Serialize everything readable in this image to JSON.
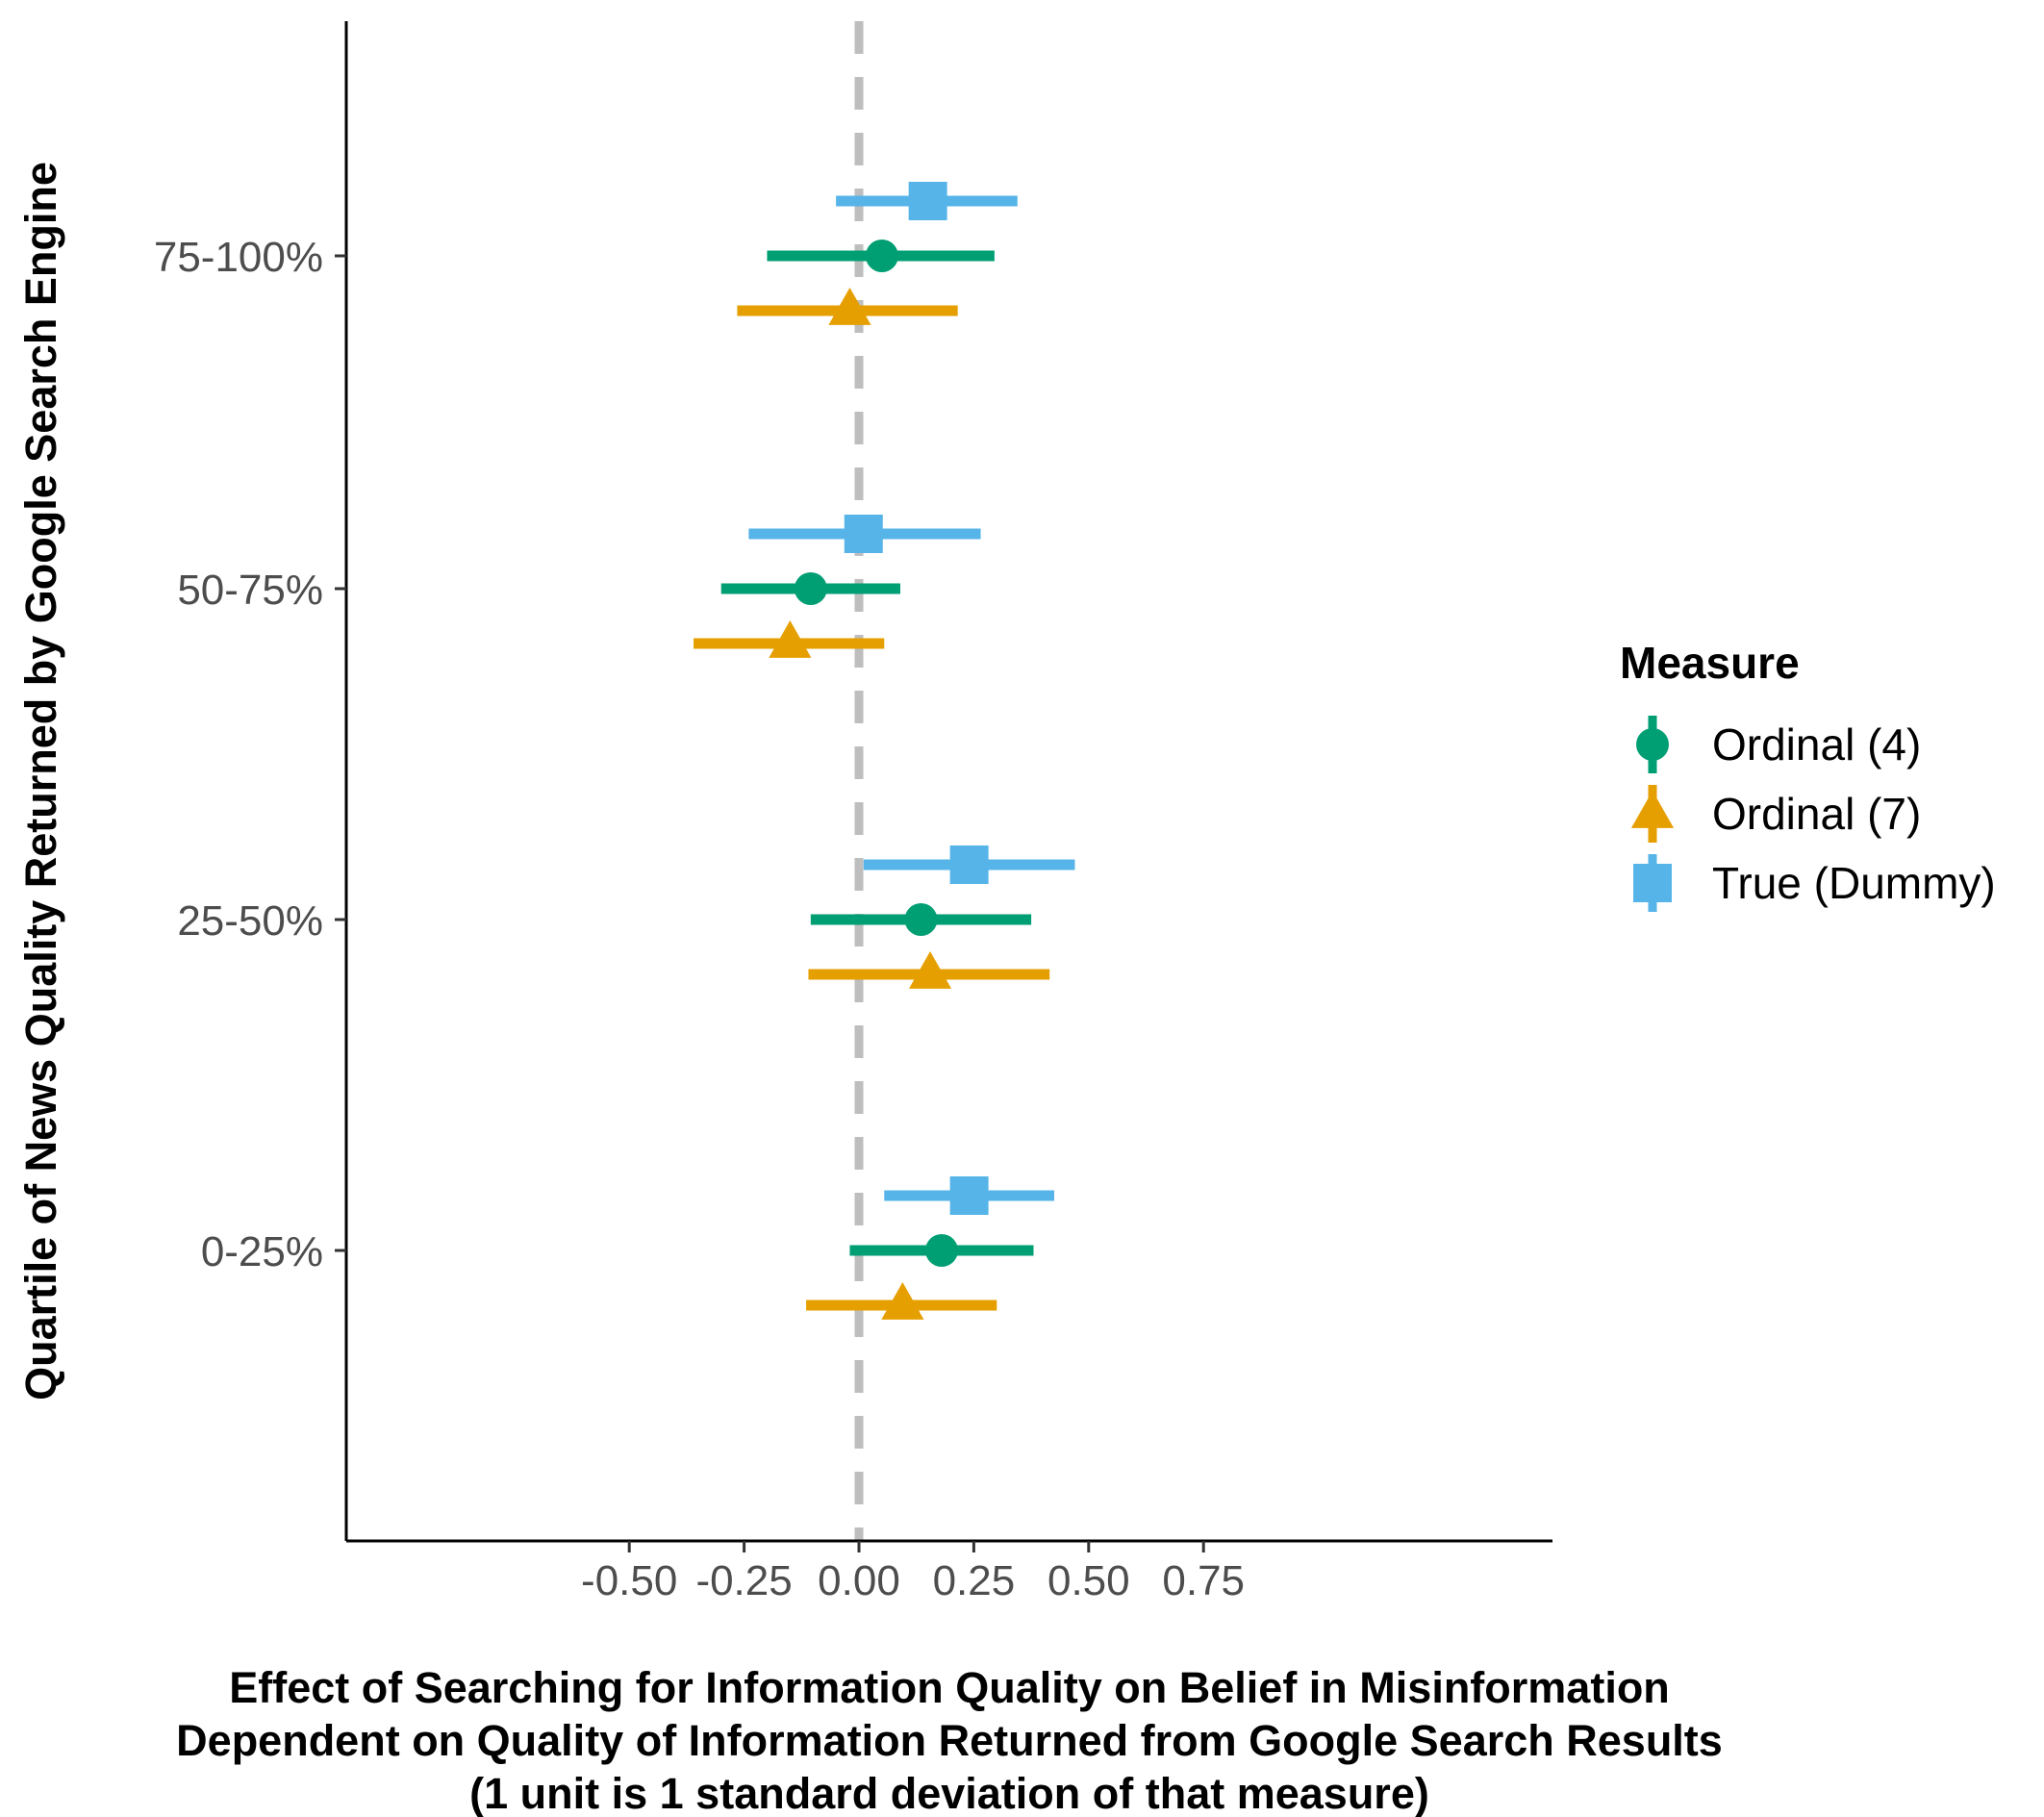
{
  "chart_data": {
    "type": "dot-whisker",
    "xlabel": [
      "Effect of Searching for Information Quality on Belief in Misinformation",
      "Dependent on Quality of Information Returned from Google Search Results",
      "(1 unit is 1 standard deviation of that measure)"
    ],
    "ylabel": "Quartile of News Quality Returned by Google Search Engine",
    "xlim": [
      -0.56,
      0.75
    ],
    "x_ticks": [
      -0.5,
      -0.25,
      0.0,
      0.25,
      0.5,
      0.75
    ],
    "x_tick_labels": [
      "-0.50",
      "-0.25",
      "0.00",
      "0.25",
      "0.50",
      "0.75"
    ],
    "categories": [
      "75-100%",
      "50-75%",
      "25-50%",
      "0-25%"
    ],
    "reference_line": {
      "x": 0,
      "style": "dashed",
      "color": "#bebebe"
    },
    "legend": {
      "title": "Measure",
      "position": "right"
    },
    "series": [
      {
        "name": "True (Dummy)",
        "color": "#56b4e9",
        "marker": "square",
        "points": [
          {
            "category": "75-100%",
            "estimate": 0.15,
            "low": -0.05,
            "high": 0.345
          },
          {
            "category": "50-75%",
            "estimate": 0.01,
            "low": -0.24,
            "high": 0.265
          },
          {
            "category": "25-50%",
            "estimate": 0.24,
            "low": 0.01,
            "high": 0.47
          },
          {
            "category": "0-25%",
            "estimate": 0.24,
            "low": 0.055,
            "high": 0.425
          }
        ]
      },
      {
        "name": "Ordinal (4)",
        "color": "#009e73",
        "marker": "circle",
        "points": [
          {
            "category": "75-100%",
            "estimate": 0.05,
            "low": -0.2,
            "high": 0.295
          },
          {
            "category": "50-75%",
            "estimate": -0.105,
            "low": -0.3,
            "high": 0.09
          },
          {
            "category": "25-50%",
            "estimate": 0.135,
            "low": -0.105,
            "high": 0.375
          },
          {
            "category": "0-25%",
            "estimate": 0.18,
            "low": -0.02,
            "high": 0.38
          }
        ]
      },
      {
        "name": "Ordinal (7)",
        "color": "#e69f00",
        "marker": "triangle",
        "points": [
          {
            "category": "75-100%",
            "estimate": -0.02,
            "low": -0.265,
            "high": 0.215
          },
          {
            "category": "50-75%",
            "estimate": -0.15,
            "low": -0.36,
            "high": 0.055
          },
          {
            "category": "25-50%",
            "estimate": 0.155,
            "low": -0.11,
            "high": 0.415
          },
          {
            "category": "0-25%",
            "estimate": 0.095,
            "low": -0.115,
            "high": 0.3
          }
        ]
      }
    ],
    "legend_order": [
      "Ordinal (4)",
      "Ordinal (7)",
      "True (Dummy)"
    ]
  }
}
